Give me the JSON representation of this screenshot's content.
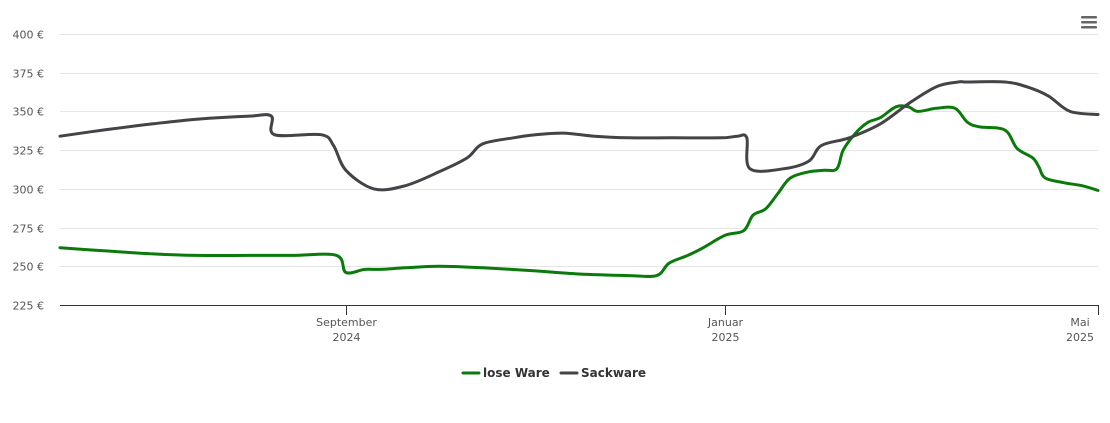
{
  "chart_data": {
    "type": "line",
    "title": "",
    "xlabel": "",
    "ylabel": "",
    "ylim": [
      225,
      400
    ],
    "xlim": [
      "2024-06-01",
      "2025-05-01"
    ],
    "grid": true,
    "legend_position": "bottom-center",
    "y_ticks": [
      {
        "value": 225,
        "label": "225 €"
      },
      {
        "value": 250,
        "label": "250 €"
      },
      {
        "value": 275,
        "label": "275 €"
      },
      {
        "value": 300,
        "label": "300 €"
      },
      {
        "value": 325,
        "label": "325 €"
      },
      {
        "value": 350,
        "label": "350 €"
      },
      {
        "value": 375,
        "label": "375 €"
      },
      {
        "value": 400,
        "label": "400 €"
      }
    ],
    "x_ticks": [
      {
        "date": "2024-09-01",
        "month": "September",
        "year": "2024"
      },
      {
        "date": "2025-01-01",
        "month": "Januar",
        "year": "2025"
      },
      {
        "date": "2025-05-01",
        "month": "Mai",
        "year": "2025"
      }
    ],
    "series": [
      {
        "name": "lose Ware",
        "color": "#0a7a0a",
        "points": [
          [
            "2024-06-01",
            262
          ],
          [
            "2024-06-15",
            260
          ],
          [
            "2024-07-01",
            258
          ],
          [
            "2024-07-15",
            257
          ],
          [
            "2024-08-01",
            257
          ],
          [
            "2024-08-15",
            257
          ],
          [
            "2024-08-29",
            257
          ],
          [
            "2024-09-01",
            246
          ],
          [
            "2024-09-07",
            248
          ],
          [
            "2024-09-12",
            248
          ],
          [
            "2024-09-20",
            249
          ],
          [
            "2024-10-01",
            250
          ],
          [
            "2024-10-15",
            249
          ],
          [
            "2024-11-01",
            247
          ],
          [
            "2024-11-15",
            245
          ],
          [
            "2024-12-01",
            244
          ],
          [
            "2024-12-10",
            244
          ],
          [
            "2024-12-14",
            252
          ],
          [
            "2024-12-20",
            257
          ],
          [
            "2024-12-25",
            262
          ],
          [
            "2025-01-01",
            270
          ],
          [
            "2025-01-07",
            273
          ],
          [
            "2025-01-10",
            283
          ],
          [
            "2025-01-14",
            287
          ],
          [
            "2025-01-18",
            297
          ],
          [
            "2025-01-22",
            307
          ],
          [
            "2025-01-28",
            311
          ],
          [
            "2025-02-02",
            312
          ],
          [
            "2025-02-06",
            313
          ],
          [
            "2025-02-08",
            325
          ],
          [
            "2025-02-12",
            336
          ],
          [
            "2025-02-16",
            343
          ],
          [
            "2025-02-20",
            346
          ],
          [
            "2025-02-25",
            353
          ],
          [
            "2025-03-01",
            353
          ],
          [
            "2025-03-04",
            350
          ],
          [
            "2025-03-10",
            352
          ],
          [
            "2025-03-16",
            352
          ],
          [
            "2025-03-20",
            343
          ],
          [
            "2025-03-24",
            340
          ],
          [
            "2025-04-01",
            338
          ],
          [
            "2025-04-05",
            326
          ],
          [
            "2025-04-10",
            320
          ],
          [
            "2025-04-12",
            314
          ],
          [
            "2025-04-14",
            307
          ],
          [
            "2025-04-20",
            304
          ],
          [
            "2025-04-26",
            302
          ],
          [
            "2025-05-01",
            299
          ]
        ]
      },
      {
        "name": "Sackware",
        "color": "#434348",
        "points": [
          [
            "2024-06-01",
            334
          ],
          [
            "2024-06-15",
            338
          ],
          [
            "2024-07-01",
            342
          ],
          [
            "2024-07-15",
            345
          ],
          [
            "2024-08-01",
            347
          ],
          [
            "2024-08-08",
            347
          ],
          [
            "2024-08-09",
            335
          ],
          [
            "2024-08-24",
            335
          ],
          [
            "2024-08-28",
            328
          ],
          [
            "2024-09-01",
            312
          ],
          [
            "2024-09-10",
            300
          ],
          [
            "2024-09-20",
            302
          ],
          [
            "2024-10-01",
            311
          ],
          [
            "2024-10-10",
            320
          ],
          [
            "2024-10-15",
            329
          ],
          [
            "2024-10-25",
            333
          ],
          [
            "2024-11-01",
            335
          ],
          [
            "2024-11-10",
            336
          ],
          [
            "2024-11-20",
            334
          ],
          [
            "2024-12-01",
            333
          ],
          [
            "2024-12-15",
            333
          ],
          [
            "2024-12-31",
            333
          ],
          [
            "2025-01-05",
            334
          ],
          [
            "2025-01-08",
            333
          ],
          [
            "2025-01-09",
            313
          ],
          [
            "2025-01-20",
            313
          ],
          [
            "2025-01-28",
            318
          ],
          [
            "2025-02-01",
            328
          ],
          [
            "2025-02-10",
            333
          ],
          [
            "2025-02-20",
            342
          ],
          [
            "2025-03-01",
            355
          ],
          [
            "2025-03-10",
            366
          ],
          [
            "2025-03-17",
            369
          ],
          [
            "2025-03-20",
            369
          ],
          [
            "2025-04-01",
            369
          ],
          [
            "2025-04-08",
            366
          ],
          [
            "2025-04-15",
            360
          ],
          [
            "2025-04-22",
            350
          ],
          [
            "2025-05-01",
            348
          ]
        ]
      }
    ]
  },
  "toolbar": {
    "menu_icon": "hamburger-menu-icon"
  }
}
